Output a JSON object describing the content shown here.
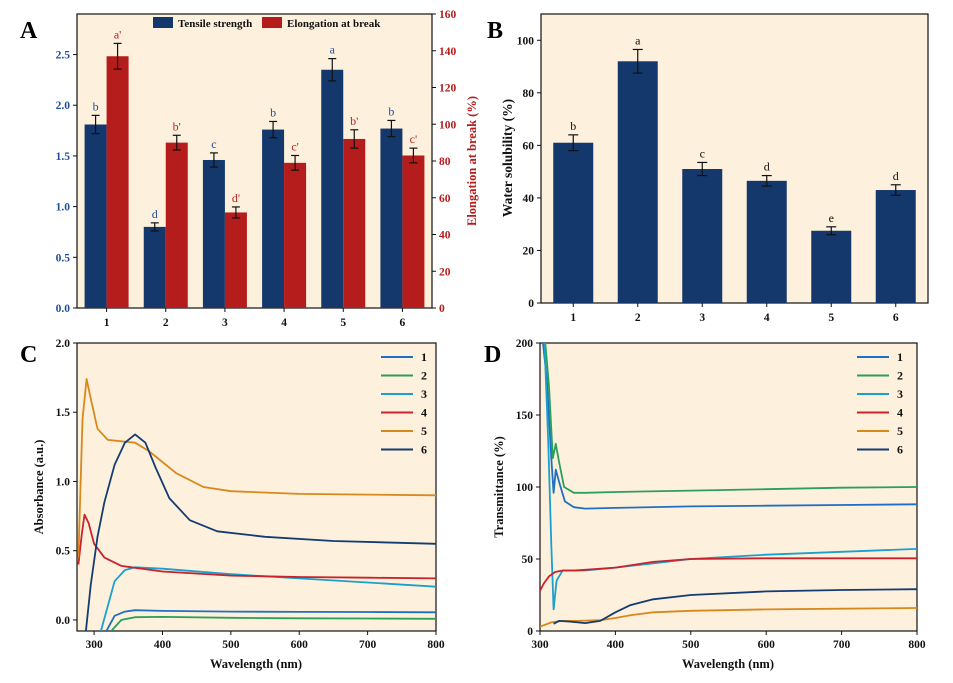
{
  "chart_data": [
    {
      "panel": "A",
      "type": "bar",
      "categories": [
        "1",
        "2",
        "3",
        "4",
        "5",
        "6"
      ],
      "xlabel": "",
      "ylabel": "",
      "ylim": [
        0,
        2.9
      ],
      "yticks": [
        "0.0",
        "0.5",
        "1.0",
        "1.5",
        "2.0",
        "2.5"
      ],
      "y2label": "Elongation at break (%)",
      "y2lim": [
        0,
        160
      ],
      "y2ticks": [
        "0",
        "20",
        "40",
        "60",
        "80",
        "100",
        "120",
        "140",
        "160"
      ],
      "legend_position": "top",
      "series": [
        {
          "name": "Tensile strength",
          "axis": "left",
          "color": "#14386b",
          "values": [
            1.81,
            0.8,
            1.46,
            1.76,
            2.35,
            1.77
          ],
          "errors": [
            0.09,
            0.04,
            0.07,
            0.08,
            0.11,
            0.08
          ],
          "letters": [
            "b",
            "d",
            "c",
            "b",
            "a",
            "b"
          ]
        },
        {
          "name": "Elongation at break",
          "axis": "right",
          "color": "#b51c1c",
          "values": [
            137,
            90,
            52,
            79,
            92,
            83
          ],
          "errors": [
            7,
            4,
            3,
            4,
            5,
            4
          ],
          "letters": [
            "a'",
            "b'",
            "d'",
            "c'",
            "b'",
            "c'"
          ]
        }
      ]
    },
    {
      "panel": "B",
      "type": "bar",
      "categories": [
        "1",
        "2",
        "3",
        "4",
        "5",
        "6"
      ],
      "xlabel": "",
      "ylabel": "Water solubility (%)",
      "ylim": [
        0,
        110
      ],
      "yticks": [
        "0",
        "20",
        "40",
        "60",
        "80",
        "100"
      ],
      "series": [
        {
          "color": "#14386b",
          "values": [
            61,
            92,
            51,
            46.5,
            27.5,
            43
          ],
          "errors": [
            3,
            4.5,
            2.5,
            2,
            1.5,
            2
          ],
          "letters": [
            "b",
            "a",
            "c",
            "d",
            "e",
            "d"
          ]
        }
      ]
    },
    {
      "panel": "C",
      "type": "line",
      "xlabel": "Wavelength (nm)",
      "ylabel": "Absorbance (a.u.)",
      "xlim": [
        275,
        800
      ],
      "ylim": [
        -0.08,
        2.0
      ],
      "xticks": [
        "300",
        "400",
        "500",
        "600",
        "700",
        "800"
      ],
      "yticks": [
        "0.0",
        "0.5",
        "1.0",
        "1.5",
        "2.0"
      ],
      "legend_position": "top-right",
      "series": [
        {
          "name": "1",
          "color": "#1f6fc2",
          "x": [
            318,
            330,
            345,
            360,
            400,
            500,
            600,
            700,
            800
          ],
          "y": [
            -0.08,
            0.03,
            0.06,
            0.07,
            0.065,
            0.06,
            0.058,
            0.057,
            0.055
          ]
        },
        {
          "name": "2",
          "color": "#2aa05a",
          "x": [
            325,
            340,
            360,
            400,
            500,
            600,
            700,
            800
          ],
          "y": [
            -0.08,
            0.0,
            0.02,
            0.022,
            0.015,
            0.012,
            0.01,
            0.008
          ]
        },
        {
          "name": "3",
          "color": "#1aa0cf",
          "x": [
            310,
            320,
            330,
            345,
            360,
            400,
            500,
            600,
            700,
            800
          ],
          "y": [
            -0.08,
            0.1,
            0.28,
            0.36,
            0.38,
            0.37,
            0.33,
            0.3,
            0.27,
            0.24
          ]
        },
        {
          "name": "4",
          "color": "#c8232c",
          "x": [
            277,
            282,
            286,
            292,
            300,
            315,
            340,
            400,
            500,
            600,
            700,
            800
          ],
          "y": [
            0.4,
            0.62,
            0.76,
            0.7,
            0.55,
            0.45,
            0.39,
            0.35,
            0.32,
            0.31,
            0.305,
            0.3
          ]
        },
        {
          "name": "5",
          "color": "#d9891c",
          "x": [
            277,
            283,
            289,
            295,
            305,
            320,
            340,
            360,
            380,
            420,
            460,
            500,
            600,
            700,
            800
          ],
          "y": [
            0.45,
            1.45,
            1.74,
            1.6,
            1.38,
            1.3,
            1.29,
            1.28,
            1.22,
            1.06,
            0.96,
            0.93,
            0.91,
            0.905,
            0.9
          ]
        },
        {
          "name": "6",
          "color": "#123c73",
          "x": [
            288,
            295,
            305,
            315,
            330,
            345,
            360,
            375,
            390,
            410,
            440,
            480,
            550,
            650,
            800
          ],
          "y": [
            -0.08,
            0.25,
            0.6,
            0.85,
            1.12,
            1.28,
            1.34,
            1.28,
            1.1,
            0.88,
            0.72,
            0.64,
            0.6,
            0.57,
            0.55
          ]
        }
      ]
    },
    {
      "panel": "D",
      "type": "line",
      "xlabel": "Wavelength (nm)",
      "ylabel": "Transmittance (%)",
      "xlim": [
        300,
        800
      ],
      "ylim": [
        0,
        200
      ],
      "xticks": [
        "300",
        "400",
        "500",
        "600",
        "700",
        "800"
      ],
      "yticks": [
        "0",
        "50",
        "100",
        "150",
        "200"
      ],
      "legend_position": "top-right",
      "series": [
        {
          "name": "1",
          "color": "#1f6fc2",
          "x": [
            304,
            309,
            315,
            318,
            321,
            325,
            333,
            345,
            360,
            400,
            500,
            600,
            700,
            800
          ],
          "y": [
            200,
            175,
            120,
            96,
            112,
            104,
            90,
            86,
            85,
            85.5,
            86.5,
            87,
            87.5,
            88
          ]
        },
        {
          "name": "2",
          "color": "#2aa05a",
          "x": [
            307,
            312,
            317,
            321,
            325,
            332,
            345,
            360,
            400,
            500,
            600,
            700,
            800
          ],
          "y": [
            200,
            170,
            120,
            130,
            118,
            100,
            96,
            96,
            96.5,
            97.5,
            98.5,
            99.5,
            100
          ]
        },
        {
          "name": "3",
          "color": "#1aa0cf",
          "x": [
            306,
            311,
            315,
            318,
            322,
            330,
            345,
            360,
            400,
            450,
            500,
            600,
            700,
            800
          ],
          "y": [
            200,
            130,
            60,
            15,
            35,
            42,
            42,
            42,
            44,
            47,
            50,
            53,
            55,
            57
          ]
        },
        {
          "name": "4",
          "color": "#c8232c",
          "x": [
            300,
            305,
            312,
            320,
            330,
            345,
            360,
            400,
            450,
            500,
            600,
            700,
            800
          ],
          "y": [
            28,
            33,
            38,
            41,
            42,
            42,
            42.5,
            44,
            48,
            50,
            50.5,
            50.5,
            50.5
          ]
        },
        {
          "name": "5",
          "color": "#d9891c",
          "x": [
            300,
            315,
            330,
            350,
            380,
            400,
            420,
            450,
            500,
            600,
            700,
            800
          ],
          "y": [
            3,
            6,
            7,
            7,
            7.5,
            9,
            11,
            13,
            14,
            15,
            15.5,
            16
          ]
        },
        {
          "name": "6",
          "color": "#123c73",
          "x": [
            318,
            325,
            340,
            360,
            380,
            400,
            420,
            450,
            500,
            600,
            700,
            800
          ],
          "y": [
            5,
            7,
            6.5,
            5.5,
            7,
            13,
            18,
            22,
            25,
            27.5,
            28.5,
            29
          ]
        }
      ]
    }
  ]
}
